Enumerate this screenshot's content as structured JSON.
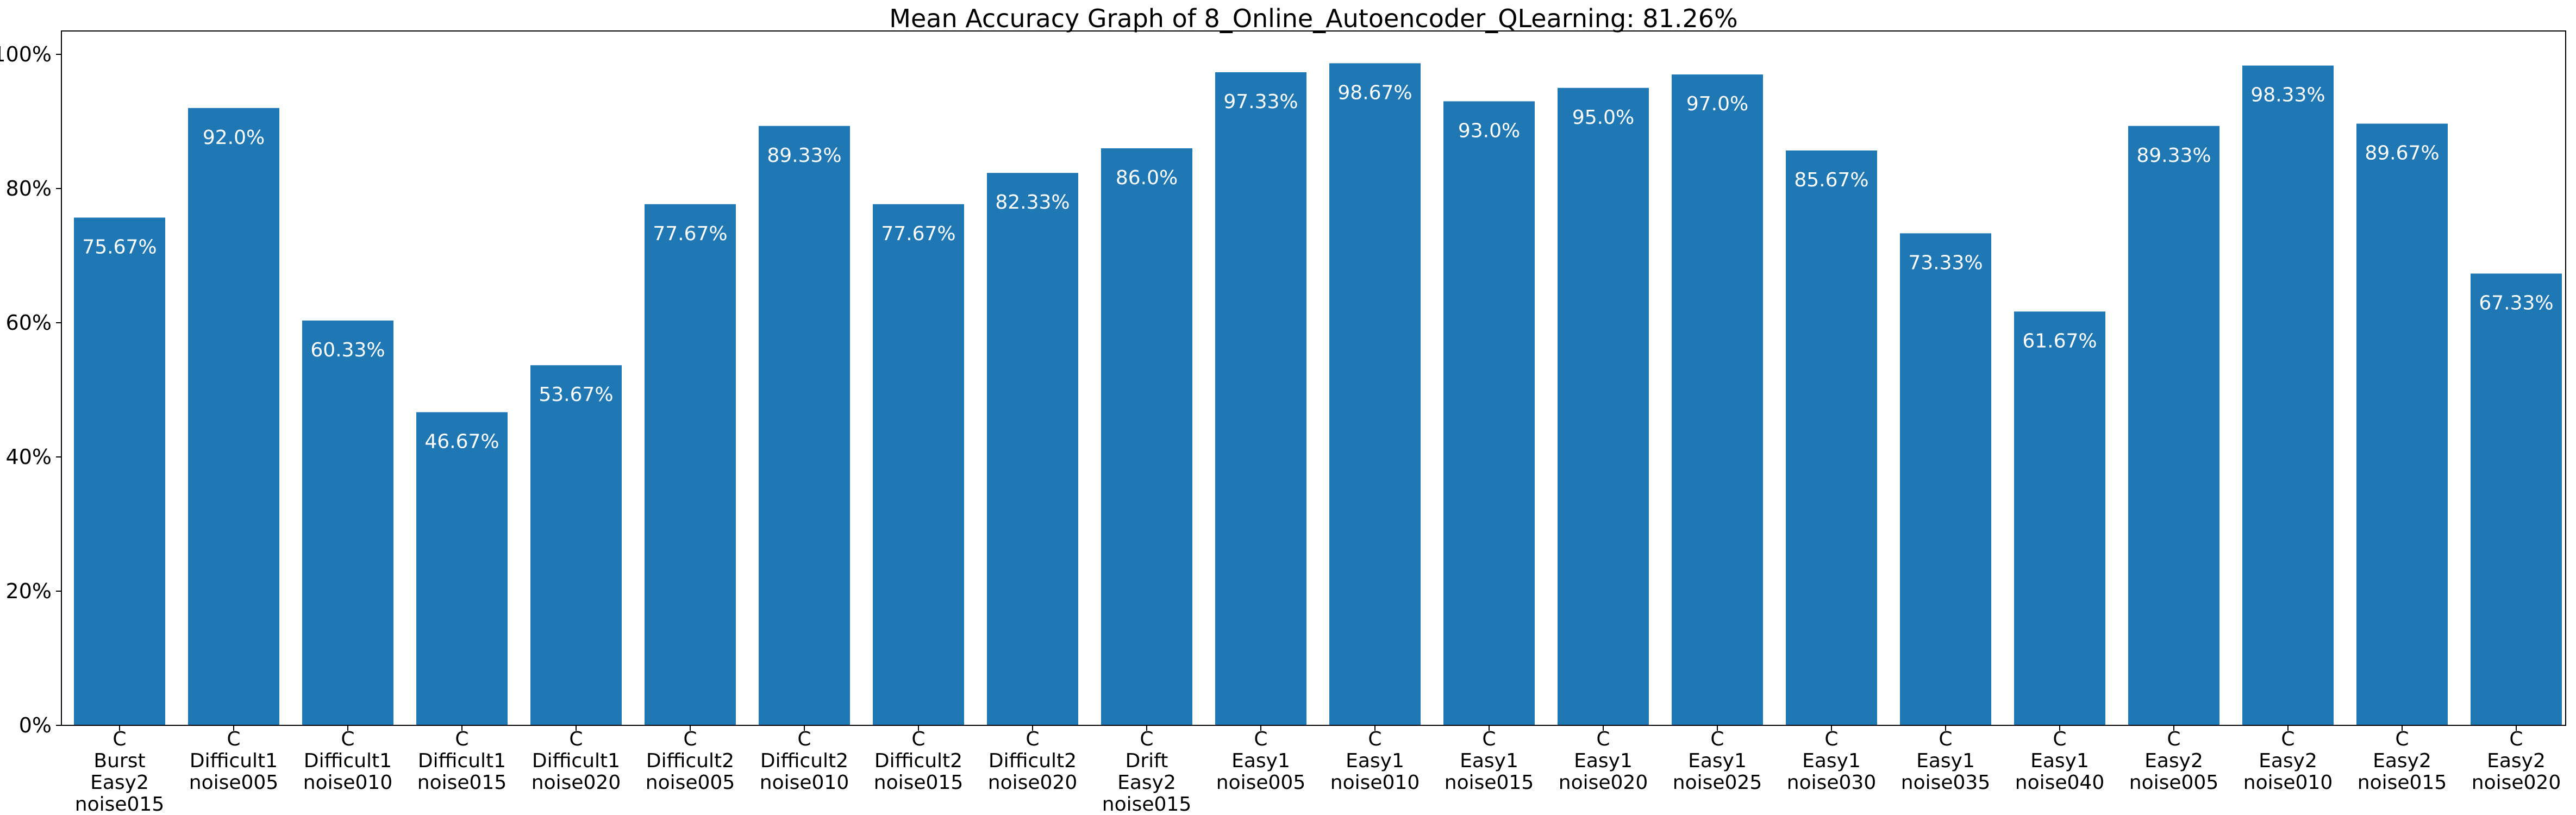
{
  "chart_data": {
    "type": "bar",
    "title": "Mean Accuracy Graph of 8_Online_Autoencoder_QLearning: 81.26%",
    "xlabel": "",
    "ylabel": "",
    "ylim": [
      0,
      100
    ],
    "y_tick_values": [
      0,
      20,
      40,
      60,
      80,
      100
    ],
    "y_tick_labels": [
      "0%",
      "20%",
      "40%",
      "60%",
      "80%",
      "100%"
    ],
    "grid": false,
    "bar_color": "#1f77b4",
    "label_color": "#ffffff",
    "categories": [
      [
        "C",
        "Burst",
        "Easy2",
        "noise015"
      ],
      [
        "C",
        "Difficult1",
        "noise005"
      ],
      [
        "C",
        "Difficult1",
        "noise010"
      ],
      [
        "C",
        "Difficult1",
        "noise015"
      ],
      [
        "C",
        "Difficult1",
        "noise020"
      ],
      [
        "C",
        "Difficult2",
        "noise005"
      ],
      [
        "C",
        "Difficult2",
        "noise010"
      ],
      [
        "C",
        "Difficult2",
        "noise015"
      ],
      [
        "C",
        "Difficult2",
        "noise020"
      ],
      [
        "C",
        "Drift",
        "Easy2",
        "noise015"
      ],
      [
        "C",
        "Easy1",
        "noise005"
      ],
      [
        "C",
        "Easy1",
        "noise010"
      ],
      [
        "C",
        "Easy1",
        "noise015"
      ],
      [
        "C",
        "Easy1",
        "noise020"
      ],
      [
        "C",
        "Easy1",
        "noise025"
      ],
      [
        "C",
        "Easy1",
        "noise030"
      ],
      [
        "C",
        "Easy1",
        "noise035"
      ],
      [
        "C",
        "Easy1",
        "noise040"
      ],
      [
        "C",
        "Easy2",
        "noise005"
      ],
      [
        "C",
        "Easy2",
        "noise010"
      ],
      [
        "C",
        "Easy2",
        "noise015"
      ],
      [
        "C",
        "Easy2",
        "noise020"
      ]
    ],
    "values": [
      75.67,
      92.0,
      60.33,
      46.67,
      53.67,
      77.67,
      89.33,
      77.67,
      82.33,
      86.0,
      97.33,
      98.67,
      93.0,
      95.0,
      97.0,
      85.67,
      73.33,
      61.67,
      89.33,
      98.33,
      89.67,
      67.33
    ],
    "data_labels": [
      "75.67%",
      "92.0%",
      "60.33%",
      "46.67%",
      "53.67%",
      "77.67%",
      "89.33%",
      "77.67%",
      "82.33%",
      "86.0%",
      "97.33%",
      "98.67%",
      "93.0%",
      "95.0%",
      "97.0%",
      "85.67%",
      "73.33%",
      "61.67%",
      "89.33%",
      "98.33%",
      "89.67%",
      "67.33%"
    ]
  }
}
